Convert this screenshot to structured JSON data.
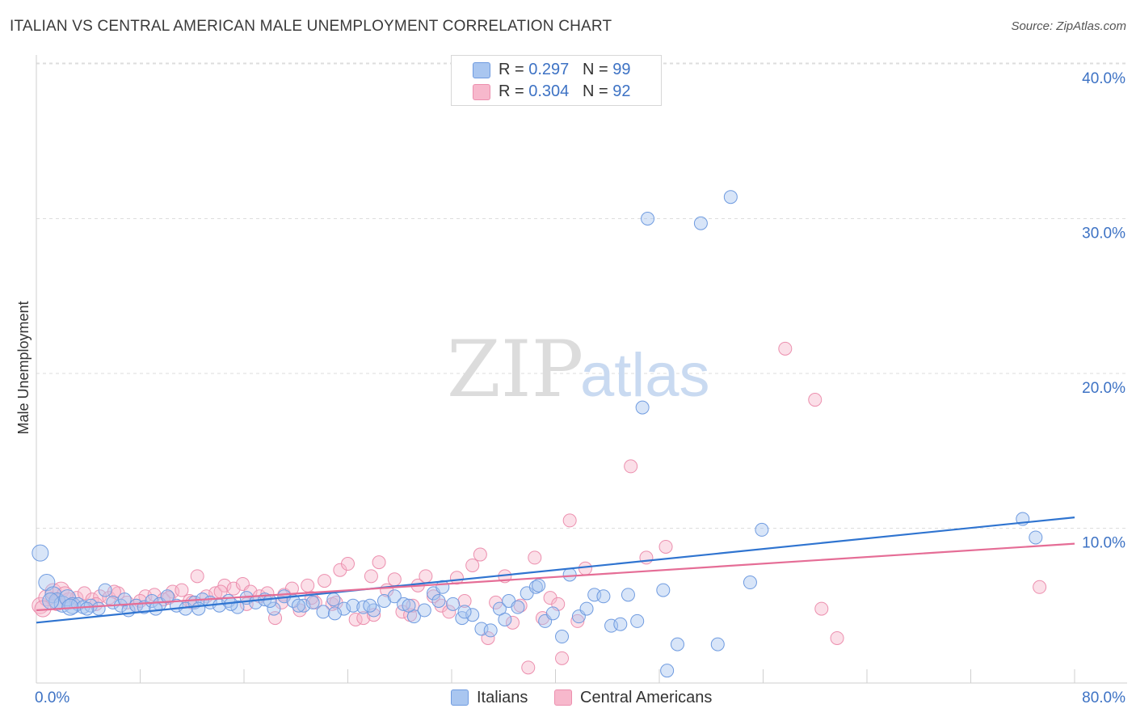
{
  "title": "ITALIAN VS CENTRAL AMERICAN MALE UNEMPLOYMENT CORRELATION CHART",
  "source": "Source: ZipAtlas.com",
  "watermark": {
    "zip": "ZIP",
    "atlas": "atlas"
  },
  "legend": {
    "rows": [
      {
        "r_label": "R =",
        "r_value": "0.297",
        "n_label": "N =",
        "n_value": "99"
      },
      {
        "r_label": "R =",
        "r_value": "0.304",
        "n_label": "N =",
        "n_value": "92"
      }
    ]
  },
  "bottom_legend": [
    "Italians",
    "Central Americans"
  ],
  "colors": {
    "blue_fill": "#a9c6f0",
    "blue_stroke": "#6f9be0",
    "blue_line": "#2f74d0",
    "pink_fill": "#f7b8cc",
    "pink_stroke": "#ec8fae",
    "pink_line": "#e56d96",
    "tick": "#3d72c4",
    "grid": "#dddddd"
  },
  "chart_data": {
    "type": "scatter",
    "title": "ITALIAN VS CENTRAL AMERICAN MALE UNEMPLOYMENT CORRELATION CHART",
    "xlabel": "",
    "ylabel": "Male Unemployment",
    "xlim": [
      0,
      80
    ],
    "ylim": [
      0,
      41
    ],
    "x_tick_labels": [
      "0.0%",
      "80.0%"
    ],
    "y_ticks": [
      10,
      20,
      30,
      40
    ],
    "y_tick_labels": [
      "10.0%",
      "20.0%",
      "30.0%",
      "40.0%"
    ],
    "grid": true,
    "legend_position": "top-center",
    "series": [
      {
        "name": "Italians",
        "color": "#a9c6f0",
        "trend": {
          "x": [
            0,
            80
          ],
          "y": [
            3.9,
            10.7
          ]
        },
        "points": [
          [
            0.3,
            8.4
          ],
          [
            0.8,
            6.5
          ],
          [
            1.3,
            5.7
          ],
          [
            1.6,
            5.3
          ],
          [
            2.0,
            5.1
          ],
          [
            2.4,
            5.5
          ],
          [
            2.8,
            5.0
          ],
          [
            3.2,
            5.1
          ],
          [
            3.6,
            4.9
          ],
          [
            4.2,
            5.0
          ],
          [
            4.8,
            4.8
          ],
          [
            5.3,
            6.0
          ],
          [
            5.9,
            5.2
          ],
          [
            6.5,
            5.0
          ],
          [
            7.1,
            4.7
          ],
          [
            7.7,
            5.0
          ],
          [
            8.3,
            4.9
          ],
          [
            8.9,
            5.3
          ],
          [
            9.5,
            5.1
          ],
          [
            10.1,
            5.6
          ],
          [
            10.8,
            5.0
          ],
          [
            11.5,
            4.8
          ],
          [
            12.2,
            5.2
          ],
          [
            12.8,
            5.4
          ],
          [
            13.4,
            5.2
          ],
          [
            14.1,
            5.0
          ],
          [
            14.8,
            5.3
          ],
          [
            15.5,
            4.9
          ],
          [
            16.2,
            5.5
          ],
          [
            16.9,
            5.2
          ],
          [
            17.6,
            5.4
          ],
          [
            18.3,
            4.8
          ],
          [
            19.1,
            5.6
          ],
          [
            19.8,
            5.3
          ],
          [
            20.6,
            5.0
          ],
          [
            21.3,
            5.2
          ],
          [
            22.1,
            4.6
          ],
          [
            22.9,
            5.4
          ],
          [
            23.7,
            4.8
          ],
          [
            24.4,
            5.0
          ],
          [
            25.2,
            4.9
          ],
          [
            26.0,
            4.7
          ],
          [
            26.8,
            5.3
          ],
          [
            27.6,
            5.6
          ],
          [
            28.3,
            5.1
          ],
          [
            29.1,
            4.3
          ],
          [
            29.9,
            4.7
          ],
          [
            30.6,
            5.8
          ],
          [
            31.3,
            6.2
          ],
          [
            32.1,
            5.1
          ],
          [
            32.8,
            4.2
          ],
          [
            33.6,
            4.4
          ],
          [
            34.3,
            3.5
          ],
          [
            35.0,
            3.4
          ],
          [
            35.7,
            4.8
          ],
          [
            36.4,
            5.3
          ],
          [
            37.1,
            4.9
          ],
          [
            37.8,
            5.8
          ],
          [
            38.5,
            6.2
          ],
          [
            39.2,
            4.0
          ],
          [
            39.8,
            4.5
          ],
          [
            40.5,
            3.0
          ],
          [
            41.1,
            7.0
          ],
          [
            41.8,
            4.3
          ],
          [
            42.4,
            4.8
          ],
          [
            43.0,
            5.7
          ],
          [
            43.7,
            5.6
          ],
          [
            44.3,
            3.7
          ],
          [
            45.0,
            3.8
          ],
          [
            45.6,
            5.7
          ],
          [
            46.3,
            4.0
          ],
          [
            46.7,
            17.8
          ],
          [
            47.1,
            30.0
          ],
          [
            48.3,
            6.0
          ],
          [
            48.6,
            0.8
          ],
          [
            49.4,
            2.5
          ],
          [
            51.2,
            29.7
          ],
          [
            52.5,
            2.5
          ],
          [
            53.5,
            31.4
          ],
          [
            55.0,
            6.5
          ],
          [
            55.9,
            9.9
          ],
          [
            1.1,
            5.3
          ],
          [
            2.6,
            4.9
          ],
          [
            3.9,
            4.8
          ],
          [
            6.8,
            5.4
          ],
          [
            9.2,
            4.8
          ],
          [
            12.5,
            4.8
          ],
          [
            15.0,
            5.1
          ],
          [
            18.0,
            5.3
          ],
          [
            20.2,
            5.0
          ],
          [
            23.0,
            4.5
          ],
          [
            25.7,
            5.0
          ],
          [
            28.7,
            5.0
          ],
          [
            31.0,
            5.3
          ],
          [
            33.0,
            4.6
          ],
          [
            36.1,
            4.1
          ],
          [
            38.7,
            6.3
          ],
          [
            76.0,
            10.6
          ],
          [
            77.0,
            9.4
          ]
        ]
      },
      {
        "name": "Central Americans",
        "color": "#f7b8cc",
        "trend": {
          "x": [
            0,
            80
          ],
          "y": [
            4.7,
            9.0
          ]
        },
        "points": [
          [
            0.3,
            5.0
          ],
          [
            0.8,
            5.5
          ],
          [
            1.3,
            5.9
          ],
          [
            1.9,
            6.0
          ],
          [
            2.5,
            5.3
          ],
          [
            3.1,
            5.5
          ],
          [
            3.7,
            5.8
          ],
          [
            4.3,
            5.4
          ],
          [
            4.9,
            5.6
          ],
          [
            5.6,
            5.5
          ],
          [
            6.3,
            5.8
          ],
          [
            7.0,
            5.2
          ],
          [
            7.7,
            5.0
          ],
          [
            8.4,
            5.6
          ],
          [
            9.1,
            5.7
          ],
          [
            9.8,
            5.4
          ],
          [
            10.5,
            5.9
          ],
          [
            11.2,
            6.0
          ],
          [
            11.8,
            5.3
          ],
          [
            12.4,
            6.9
          ],
          [
            13.1,
            5.6
          ],
          [
            13.8,
            5.8
          ],
          [
            14.5,
            6.3
          ],
          [
            15.2,
            6.1
          ],
          [
            15.9,
            6.4
          ],
          [
            16.5,
            5.9
          ],
          [
            17.2,
            5.6
          ],
          [
            17.8,
            5.8
          ],
          [
            18.4,
            4.2
          ],
          [
            19.1,
            5.7
          ],
          [
            19.7,
            6.1
          ],
          [
            20.3,
            4.7
          ],
          [
            20.9,
            6.3
          ],
          [
            21.5,
            5.2
          ],
          [
            22.2,
            6.6
          ],
          [
            22.8,
            5.1
          ],
          [
            23.4,
            7.3
          ],
          [
            24.0,
            7.7
          ],
          [
            24.6,
            4.1
          ],
          [
            25.2,
            4.2
          ],
          [
            25.8,
            6.9
          ],
          [
            26.4,
            7.8
          ],
          [
            27.0,
            6.0
          ],
          [
            27.6,
            6.7
          ],
          [
            28.2,
            4.6
          ],
          [
            28.8,
            4.4
          ],
          [
            29.4,
            6.3
          ],
          [
            30.0,
            6.9
          ],
          [
            30.6,
            5.6
          ],
          [
            31.2,
            5.0
          ],
          [
            31.8,
            4.6
          ],
          [
            32.4,
            6.8
          ],
          [
            33.0,
            5.3
          ],
          [
            33.6,
            7.6
          ],
          [
            34.2,
            8.3
          ],
          [
            34.8,
            2.9
          ],
          [
            35.4,
            5.2
          ],
          [
            36.1,
            6.9
          ],
          [
            36.7,
            3.9
          ],
          [
            37.3,
            5.0
          ],
          [
            37.9,
            1.0
          ],
          [
            38.4,
            8.1
          ],
          [
            39.0,
            4.2
          ],
          [
            39.6,
            5.5
          ],
          [
            40.2,
            5.1
          ],
          [
            40.5,
            1.6
          ],
          [
            41.1,
            10.5
          ],
          [
            41.7,
            4.0
          ],
          [
            42.3,
            7.4
          ],
          [
            45.8,
            14.0
          ],
          [
            47.0,
            8.1
          ],
          [
            48.5,
            8.8
          ],
          [
            57.7,
            21.6
          ],
          [
            60.0,
            18.3
          ],
          [
            60.5,
            4.8
          ],
          [
            61.7,
            2.9
          ],
          [
            77.3,
            6.2
          ],
          [
            0.5,
            4.8
          ],
          [
            1.6,
            5.2
          ],
          [
            2.2,
            5.7
          ],
          [
            4.6,
            5.1
          ],
          [
            6.0,
            5.9
          ],
          [
            8.0,
            5.3
          ],
          [
            10.2,
            5.5
          ],
          [
            12.0,
            5.2
          ],
          [
            14.2,
            5.9
          ],
          [
            16.2,
            5.1
          ],
          [
            18.9,
            5.2
          ],
          [
            21.2,
            5.5
          ],
          [
            23.1,
            5.2
          ],
          [
            26.0,
            4.4
          ],
          [
            29.0,
            5.0
          ]
        ]
      }
    ]
  }
}
